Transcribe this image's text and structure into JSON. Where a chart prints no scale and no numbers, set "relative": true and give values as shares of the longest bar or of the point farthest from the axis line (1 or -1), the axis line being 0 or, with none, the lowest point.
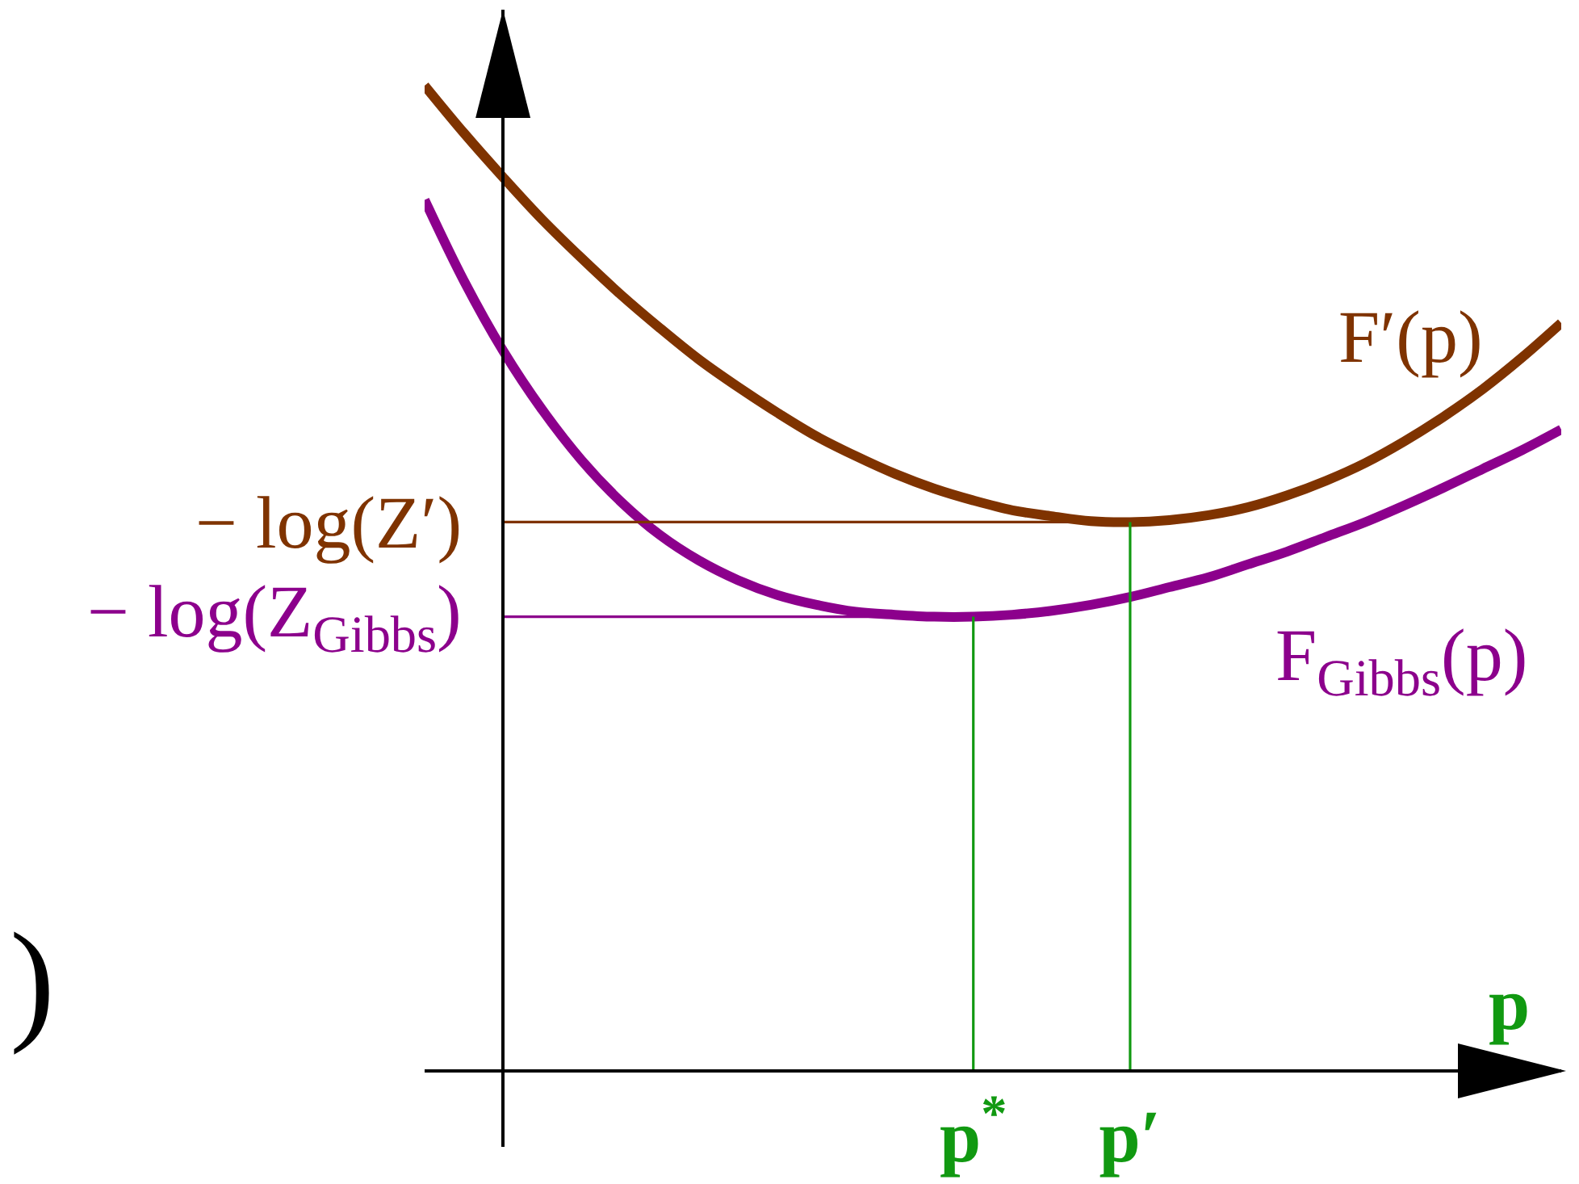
{
  "chart_data": {
    "type": "line",
    "relative": true,
    "xlabel": "p",
    "categories": [
      null,
      null,
      null,
      null,
      null,
      null,
      null,
      null,
      null,
      null,
      null,
      null,
      null,
      null,
      "p$^{*}$",
      null,
      null,
      null,
      "p′",
      null,
      null,
      null,
      null,
      null,
      null,
      null,
      null,
      null,
      null,
      null
    ],
    "series": [
      {
        "name": "F′(p)",
        "color": "#7f3300",
        "values": [
          1.0,
          0.952,
          0.907,
          0.864,
          0.825,
          0.788,
          0.754,
          0.722,
          0.694,
          0.668,
          0.644,
          0.624,
          0.606,
          0.591,
          0.579,
          0.569,
          0.563,
          0.558,
          0.557,
          0.559,
          0.564,
          0.572,
          0.584,
          0.599,
          0.617,
          0.639,
          0.664,
          0.692,
          0.724,
          0.759
        ]
      },
      {
        "name": "F$_{Gibbs}$(p)",
        "color": "#8c008c",
        "values": [
          0.884,
          0.802,
          0.731,
          0.671,
          0.62,
          0.578,
          0.544,
          0.518,
          0.498,
          0.483,
          0.473,
          0.466,
          0.463,
          0.461,
          0.461,
          0.463,
          0.467,
          0.473,
          0.481,
          0.491,
          0.501,
          0.514,
          0.527,
          0.542,
          0.557,
          0.574,
          0.592,
          0.611,
          0.63,
          0.651
        ]
      },
      {
        "name": "− log(Z′)",
        "color": "#7f3300",
        "values": [
          null,
          null,
          0.557,
          0.557,
          0.557,
          0.557,
          0.557,
          0.557,
          0.557,
          0.557,
          0.557,
          0.557,
          0.557,
          0.557,
          0.557,
          0.557,
          0.557,
          0.557,
          0.557,
          null,
          null,
          null,
          null,
          null,
          null,
          null,
          null,
          null,
          null,
          null
        ]
      },
      {
        "name": "− log(Z$_{Gibbs}$)",
        "color": "#8c008c",
        "values": [
          null,
          null,
          0.461,
          0.461,
          0.461,
          0.461,
          0.461,
          0.461,
          0.461,
          0.461,
          0.461,
          0.461,
          0.461,
          0.461,
          0.461,
          null,
          null,
          null,
          null,
          null,
          null,
          null,
          null,
          null,
          null,
          null,
          null,
          null,
          null,
          null
        ]
      },
      {
        "color": "#119911",
        "x": [
          "p$^{*}$",
          "p$^{*}$"
        ],
        "values": [
          0,
          0.461
        ]
      },
      {
        "color": "#119911",
        "x": [
          "p′",
          "p′"
        ],
        "values": [
          0,
          0.557
        ]
      }
    ],
    "annotations": [
      ")"
    ]
  }
}
